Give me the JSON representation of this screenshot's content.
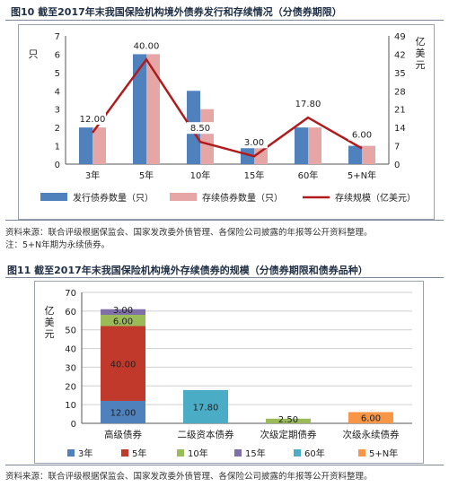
{
  "fig10": {
    "title": "图10  截至2017年末我国保险机构境外债券发行和存续情况（分债券期限）",
    "source": "资料来源：联合评级根据保监会、国家发改委外债管理、各保险公司披露的年报等公开资料整理。",
    "note": "注：5+N年期为永续债券。"
  },
  "fig11": {
    "title": "图11  截至2017年末我国保险机构境外存续债券的规模（分债券期限和债券品种）",
    "source": "资料来源：联合评级根据保监会、国家发改委外债管理、各保险公司披露的年报等公开资料整理。"
  },
  "chart_data": [
    {
      "type": "bar",
      "categories": [
        "3年",
        "5年",
        "10年",
        "15年",
        "60年",
        "5+N年"
      ],
      "series": [
        {
          "name": "发行债券数量（只）",
          "kind": "bar",
          "axis": "left",
          "color": "#4f81bd",
          "values": [
            2,
            6,
            4,
            1,
            2,
            1
          ]
        },
        {
          "name": "存续债券数量（只）",
          "kind": "bar",
          "axis": "left",
          "color": "#e6a6a6",
          "values": [
            2,
            6,
            3,
            1,
            2,
            1
          ]
        },
        {
          "name": "存续规模（亿美元）",
          "kind": "line",
          "axis": "right",
          "color": "#b01c1c",
          "values": [
            12.0,
            40.0,
            8.5,
            3.0,
            17.8,
            6.0
          ],
          "labels": [
            "12.00",
            "40.00",
            "8.50",
            "3.00",
            "17.80",
            "6.00"
          ]
        }
      ],
      "ylabel_left": "只",
      "ylabel_right": "亿美元",
      "ylim_left": [
        0,
        7
      ],
      "yticks_left": [
        "0",
        "1",
        "2",
        "3",
        "4",
        "5",
        "6",
        "7"
      ],
      "ylim_right": [
        0,
        49
      ],
      "yticks_right": [
        "0",
        "7",
        "14",
        "21",
        "28",
        "35",
        "42",
        "49"
      ],
      "grid": false,
      "legend": "bottom"
    },
    {
      "type": "bar",
      "stacked": true,
      "categories": [
        "高级债券",
        "二级资本债券",
        "次级定期债券",
        "次级永续债券"
      ],
      "series": [
        {
          "name": "3年",
          "color": "#4f81bd",
          "values": [
            12.0,
            0,
            0,
            0
          ],
          "labels": [
            "12.00",
            "",
            "",
            ""
          ]
        },
        {
          "name": "5年",
          "color": "#c0392b",
          "values": [
            40.0,
            0,
            0,
            0
          ],
          "labels": [
            "40.00",
            "",
            "",
            ""
          ]
        },
        {
          "name": "10年",
          "color": "#9bbb59",
          "values": [
            6.0,
            0,
            2.5,
            0
          ],
          "labels": [
            "6.00",
            "",
            "2.50",
            ""
          ]
        },
        {
          "name": "15年",
          "color": "#7f6fa8",
          "values": [
            3.0,
            0,
            0,
            0
          ],
          "labels": [
            "3.00",
            "",
            "",
            ""
          ]
        },
        {
          "name": "60年",
          "color": "#4bacc6",
          "values": [
            0,
            17.8,
            0,
            0
          ],
          "labels": [
            "",
            "17.80",
            "",
            ""
          ]
        },
        {
          "name": "5+N年",
          "color": "#f79646",
          "values": [
            0,
            0,
            0,
            6.0
          ],
          "labels": [
            "",
            "",
            "",
            "6.00"
          ]
        }
      ],
      "ylabel": "亿美元",
      "ylim": [
        0,
        70
      ],
      "yticks": [
        "0",
        "10",
        "20",
        "30",
        "40",
        "50",
        "60",
        "70"
      ],
      "grid": true,
      "legend": "bottom"
    }
  ]
}
